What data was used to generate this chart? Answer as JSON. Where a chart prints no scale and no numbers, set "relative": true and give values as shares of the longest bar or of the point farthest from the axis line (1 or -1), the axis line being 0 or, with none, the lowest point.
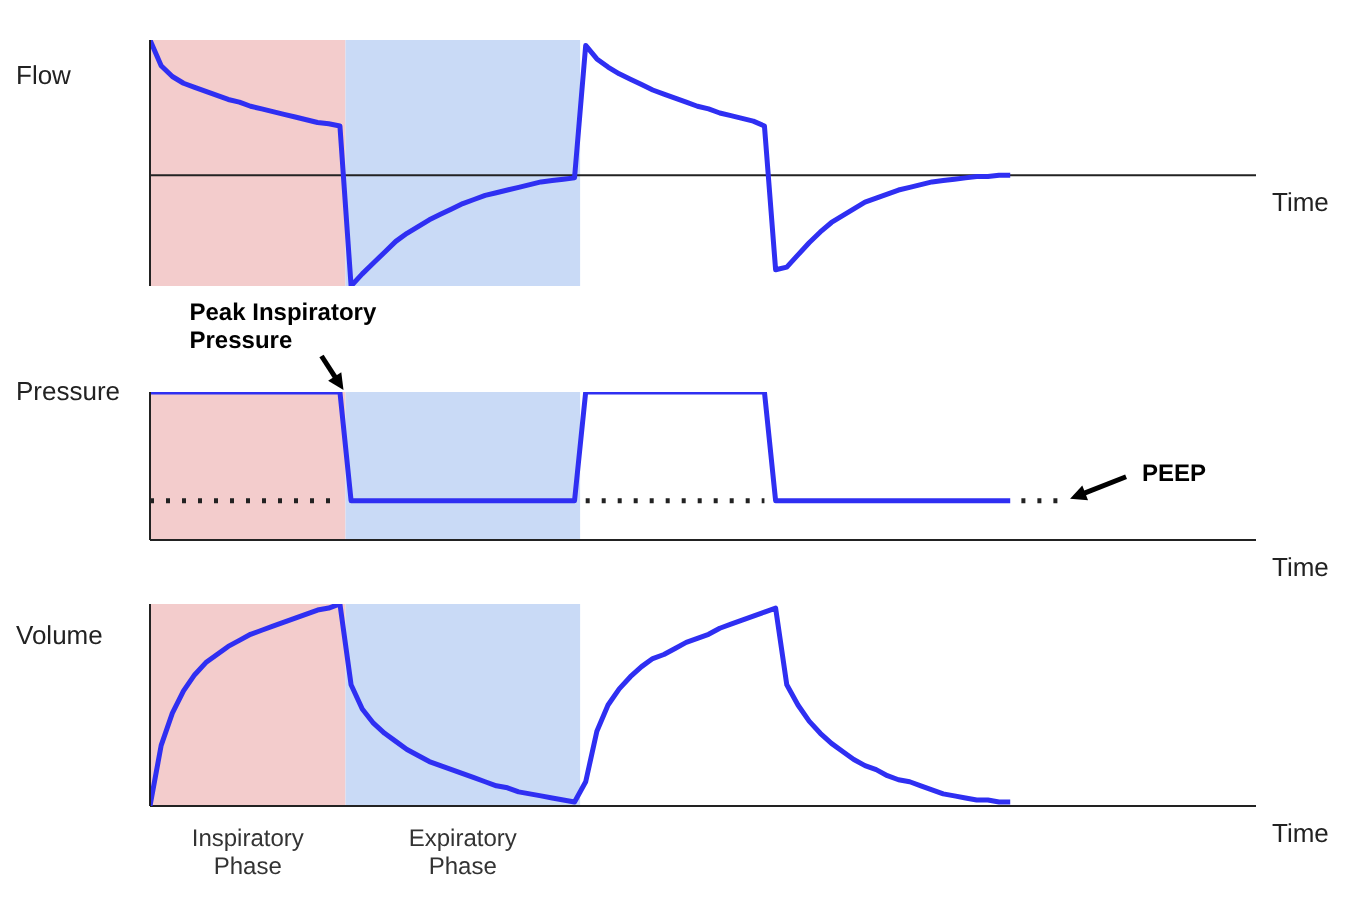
{
  "chart_data": [
    {
      "type": "line",
      "ylabel": "Flow",
      "xlabel": "Time",
      "relative": true,
      "tick_labels": false,
      "marker": "none",
      "line_style": "solid",
      "categories": [
        null,
        null,
        null,
        null,
        null,
        null,
        null,
        null,
        null,
        null,
        null,
        null,
        null,
        null,
        null,
        null,
        null,
        null,
        null,
        null,
        null,
        null,
        null,
        null,
        null,
        null,
        null,
        null,
        null,
        null,
        null,
        null,
        null,
        null,
        null,
        null,
        null,
        null,
        null,
        null,
        null,
        null,
        null,
        null,
        null,
        null,
        null,
        null,
        null,
        null,
        null,
        null,
        null,
        null,
        null,
        null,
        null,
        null,
        null,
        null,
        null,
        null,
        null,
        null,
        null,
        null,
        null,
        null,
        null,
        null,
        null,
        null,
        null,
        null,
        null,
        null,
        null,
        null,
        null,
        null,
        null,
        null,
        null,
        null,
        null,
        null,
        null,
        null,
        null,
        null,
        null,
        null,
        null,
        null,
        null,
        null,
        null,
        null,
        null,
        null
      ],
      "series": [
        {
          "color": "#2f2ff2",
          "values": [
            1,
            0.81,
            0.73,
            0.68,
            0.65,
            0.62,
            0.59,
            0.56,
            0.54,
            0.51,
            0.49,
            0.47,
            0.45,
            0.43,
            0.41,
            0.39,
            0.38,
            0.364,
            -0.82,
            -0.73,
            -0.65,
            -0.57,
            -0.49,
            -0.43,
            -0.38,
            -0.33,
            -0.29,
            -0.25,
            -0.21,
            -0.18,
            -0.15,
            -0.13,
            -0.11,
            -0.09,
            -0.07,
            -0.05,
            -0.04,
            -0.03,
            -0.02,
            0.96,
            0.86,
            0.8,
            0.75,
            0.71,
            0.67,
            0.63,
            0.6,
            0.57,
            0.54,
            0.51,
            0.49,
            0.46,
            0.44,
            0.42,
            0.4,
            0.364,
            -0.7,
            -0.68,
            -0.59,
            -0.5,
            -0.42,
            -0.35,
            -0.3,
            -0.25,
            -0.2,
            -0.17,
            -0.14,
            -0.11,
            -0.09,
            -0.07,
            -0.05,
            -0.04,
            -0.03,
            -0.02,
            -0.01,
            -0.01,
            0,
            0,
            null,
            null,
            null,
            null,
            null,
            null,
            null,
            null,
            null,
            null,
            null,
            null,
            null,
            null,
            null,
            null,
            null,
            null,
            null,
            null,
            null,
            null
          ]
        }
      ]
    },
    {
      "type": "line",
      "ylabel": "Pressure",
      "xlabel": "Time",
      "relative": true,
      "tick_labels": false,
      "marker": "none",
      "line_style": "solid",
      "categories": [
        null,
        null,
        null,
        null,
        null,
        null,
        null,
        null,
        null,
        null,
        null,
        null,
        null,
        null,
        null,
        null,
        null,
        null,
        null,
        null,
        null,
        null,
        null,
        null,
        null,
        null,
        null,
        null,
        null,
        null,
        null,
        null,
        null,
        null,
        null,
        null,
        null,
        null,
        null,
        null,
        null,
        null,
        null,
        null,
        null,
        null,
        null,
        null,
        null,
        null,
        null,
        null,
        null,
        null,
        null,
        null,
        null,
        null,
        null,
        null,
        null,
        null,
        null,
        null,
        null,
        null,
        null,
        null,
        null,
        null,
        null,
        null,
        null,
        null,
        null,
        null,
        null,
        null,
        null,
        null,
        null,
        null,
        null,
        null,
        null,
        null,
        null,
        null,
        null,
        null,
        null,
        null,
        null,
        null,
        null,
        null,
        null,
        null,
        null,
        null
      ],
      "annotations": [
        {
          "text": "Peak Inspiratory Pressure",
          "y": 1
        }
      ],
      "series": [
        {
          "color": "#2f2ff2",
          "values": [
            1,
            1,
            1,
            1,
            1,
            1,
            1,
            1,
            1,
            1,
            1,
            1,
            1,
            1,
            1,
            1,
            1,
            1,
            0.265,
            0.265,
            0.265,
            0.265,
            0.265,
            0.265,
            0.265,
            0.265,
            0.265,
            0.265,
            0.265,
            0.265,
            0.265,
            0.265,
            0.265,
            0.265,
            0.265,
            0.265,
            0.265,
            0.265,
            0.265,
            1,
            1,
            1,
            1,
            1,
            1,
            1,
            1,
            1,
            1,
            1,
            1,
            1,
            1,
            1,
            1,
            1,
            0.265,
            0.265,
            0.265,
            0.265,
            0.265,
            0.265,
            0.265,
            0.265,
            0.265,
            0.265,
            0.265,
            0.265,
            0.265,
            0.265,
            0.265,
            0.265,
            0.265,
            0.265,
            0.265,
            0.265,
            0.265,
            0.265,
            null,
            null,
            null,
            null,
            null,
            null,
            null,
            null,
            null,
            null,
            null,
            null,
            null,
            null,
            null,
            null,
            null,
            null,
            null,
            null,
            null,
            null
          ]
        },
        {
          "name": "PEEP",
          "color": "#222222",
          "line_style": "dotted",
          "values": [
            0.265,
            0.265,
            0.265,
            0.265,
            0.265,
            0.265,
            0.265,
            0.265,
            0.265,
            0.265,
            0.265,
            0.265,
            0.265,
            0.265,
            0.265,
            0.265,
            0.265,
            0.265,
            null,
            null,
            null,
            null,
            null,
            null,
            null,
            null,
            null,
            null,
            null,
            null,
            null,
            null,
            null,
            null,
            null,
            null,
            null,
            null,
            null,
            0.265,
            0.265,
            0.265,
            0.265,
            0.265,
            0.265,
            0.265,
            0.265,
            0.265,
            0.265,
            0.265,
            0.265,
            0.265,
            0.265,
            0.265,
            0.265,
            0.265,
            null,
            null,
            null,
            null,
            null,
            null,
            null,
            null,
            null,
            null,
            null,
            null,
            null,
            null,
            null,
            null,
            null,
            null,
            null,
            null,
            null,
            null,
            0.265,
            0.265,
            0.265,
            0.265,
            0.265,
            null,
            null,
            null,
            null,
            null,
            null,
            null,
            null,
            null,
            null,
            null,
            null,
            null,
            null,
            null,
            null,
            null
          ]
        }
      ]
    },
    {
      "type": "line",
      "ylabel": "Volume",
      "xlabel": "Time",
      "relative": true,
      "tick_labels": false,
      "marker": "none",
      "line_style": "solid",
      "categories": [
        null,
        null,
        null,
        null,
        null,
        null,
        null,
        null,
        null,
        null,
        null,
        null,
        null,
        null,
        null,
        null,
        null,
        null,
        null,
        null,
        null,
        null,
        null,
        null,
        null,
        null,
        null,
        null,
        null,
        null,
        null,
        null,
        null,
        null,
        null,
        null,
        null,
        null,
        null,
        null,
        null,
        null,
        null,
        null,
        null,
        null,
        null,
        null,
        null,
        null,
        null,
        null,
        null,
        null,
        null,
        null,
        null,
        null,
        null,
        null,
        null,
        null,
        null,
        null,
        null,
        null,
        null,
        null,
        null,
        null,
        null,
        null,
        null,
        null,
        null,
        null,
        null,
        null,
        null,
        null,
        null,
        null,
        null,
        null,
        null,
        null,
        null,
        null,
        null,
        null,
        null,
        null,
        null,
        null,
        null,
        null,
        null,
        null,
        null,
        null
      ],
      "annotations": [
        "Inspiratory Phase",
        "Expiratory Phase"
      ],
      "series": [
        {
          "color": "#2f2ff2",
          "values": [
            0,
            0.3,
            0.46,
            0.57,
            0.65,
            0.71,
            0.75,
            0.79,
            0.82,
            0.85,
            0.87,
            0.89,
            0.91,
            0.93,
            0.95,
            0.97,
            0.98,
            1,
            0.6,
            0.48,
            0.41,
            0.36,
            0.32,
            0.28,
            0.25,
            0.22,
            0.2,
            0.18,
            0.16,
            0.14,
            0.12,
            0.1,
            0.09,
            0.07,
            0.06,
            0.05,
            0.04,
            0.03,
            0.02,
            0.12,
            0.37,
            0.5,
            0.58,
            0.64,
            0.69,
            0.73,
            0.75,
            0.78,
            0.81,
            0.83,
            0.85,
            0.88,
            0.9,
            0.92,
            0.94,
            0.96,
            0.98,
            0.6,
            0.5,
            0.42,
            0.36,
            0.31,
            0.27,
            0.23,
            0.2,
            0.18,
            0.15,
            0.13,
            0.12,
            0.1,
            0.08,
            0.06,
            0.05,
            0.04,
            0.03,
            0.03,
            0.02,
            0.02,
            null,
            null,
            null,
            null,
            null,
            null,
            null,
            null,
            null,
            null,
            null,
            null,
            null,
            null,
            null,
            null,
            null,
            null,
            null,
            null,
            null,
            null
          ]
        }
      ]
    }
  ]
}
